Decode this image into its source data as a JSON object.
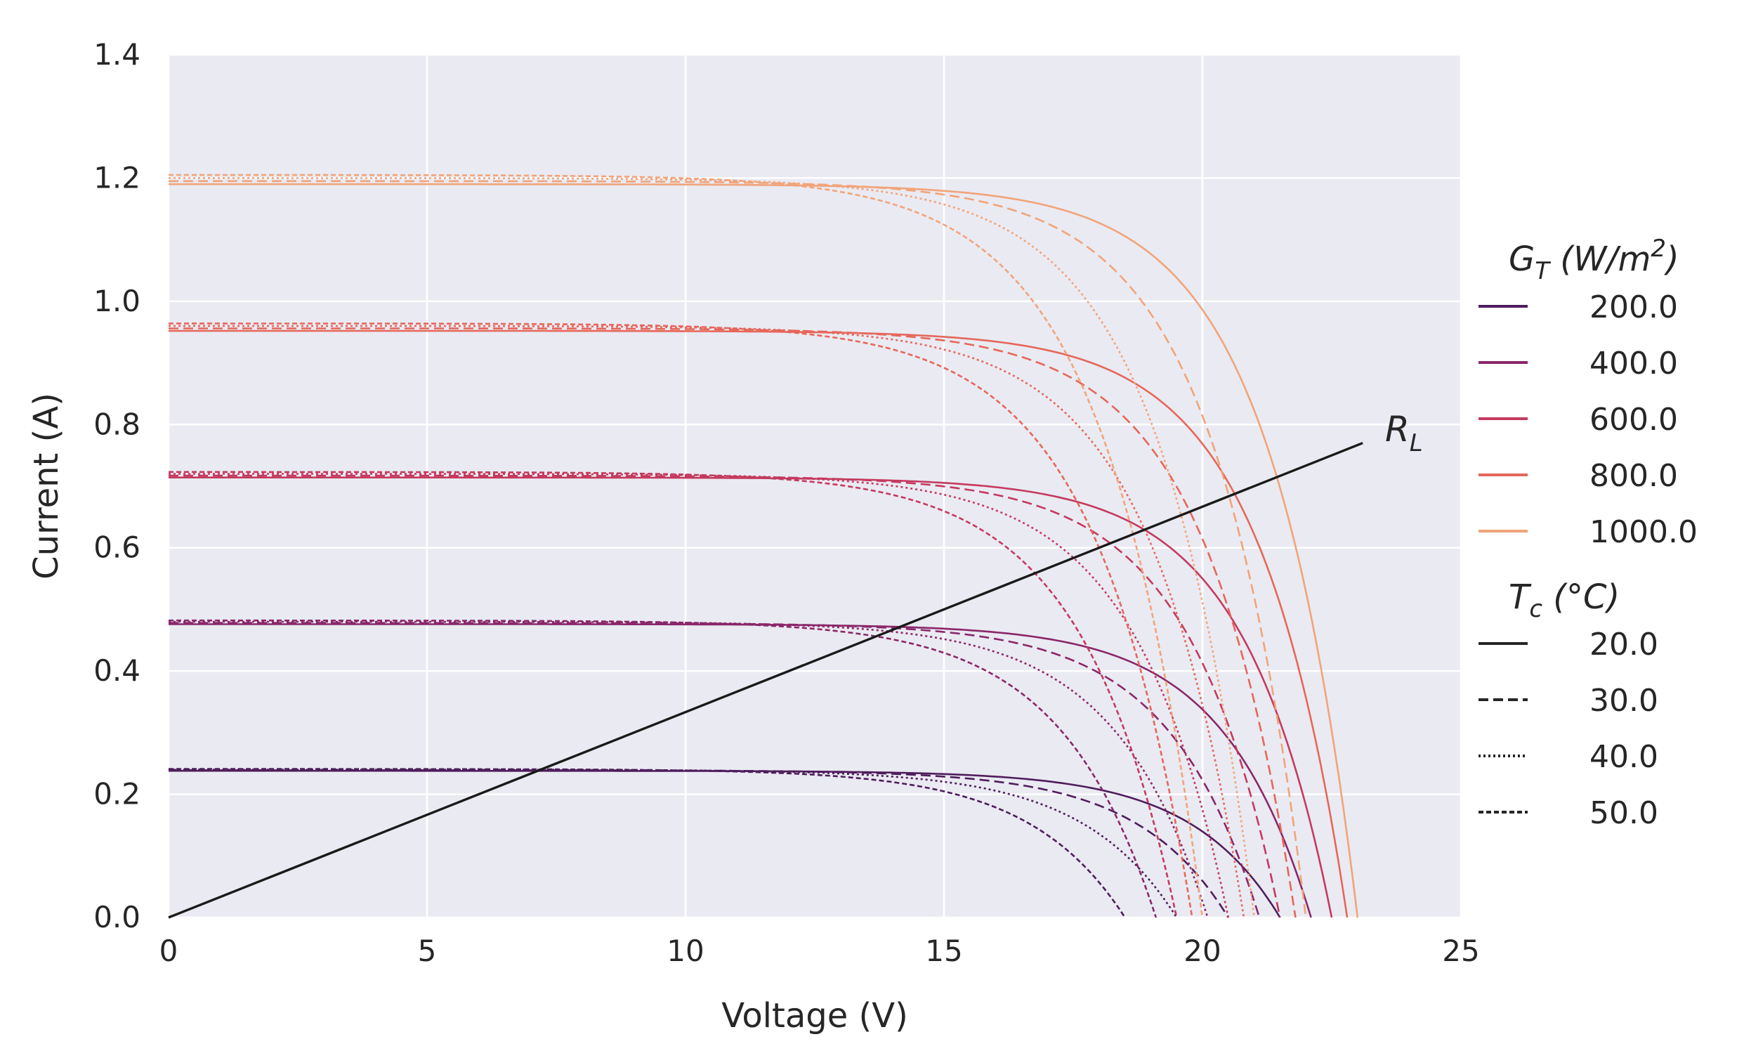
{
  "chart_data": {
    "type": "line",
    "title": "",
    "xlabel": "Voltage (V)",
    "ylabel": "Current (A)",
    "xlim": [
      0,
      25
    ],
    "ylim": [
      0,
      1.4
    ],
    "xticks": [
      "0",
      "5",
      "10",
      "15",
      "20",
      "25"
    ],
    "yticks": [
      "0.0",
      "0.2",
      "0.4",
      "0.6",
      "0.8",
      "1.0",
      "1.2",
      "1.4"
    ],
    "grid": true,
    "legend_position": "right",
    "legend_irradiance": {
      "title_main": "G",
      "title_sub": "T",
      "title_rest": " (W/m",
      "title_sup": "2",
      "title_end": ")",
      "entries": [
        {
          "label": "200.0",
          "color": "#4e1d5c"
        },
        {
          "label": "400.0",
          "color": "#8a2769"
        },
        {
          "label": "600.0",
          "color": "#c43a5e"
        },
        {
          "label": "800.0",
          "color": "#e5675a"
        },
        {
          "label": "1000.0",
          "color": "#f1a479"
        }
      ]
    },
    "legend_temperature": {
      "title_main": "T",
      "title_sub": "c",
      "title_rest": " (°C)",
      "entries": [
        {
          "label": "20.0",
          "dash": "solid"
        },
        {
          "label": "30.0",
          "dash": "dashed"
        },
        {
          "label": "40.0",
          "dash": "dotted"
        },
        {
          "label": "50.0",
          "dash": "densely-dashed"
        }
      ]
    },
    "load_line": {
      "label_main": "R",
      "label_sub": "L",
      "color": "#1a1a1a",
      "x": [
        0,
        23.1
      ],
      "y": [
        0,
        0.77
      ]
    },
    "series": [
      {
        "name": "G=200, Tc=20",
        "g_index": 0,
        "dash": "solid",
        "isc": 0.238,
        "voc": 21.5,
        "knee": 1.7
      },
      {
        "name": "G=200, Tc=30",
        "g_index": 0,
        "dash": "dashed",
        "isc": 0.239,
        "voc": 20.5,
        "knee": 1.75
      },
      {
        "name": "G=200, Tc=40",
        "g_index": 0,
        "dash": "dotted",
        "isc": 0.24,
        "voc": 19.5,
        "knee": 1.8
      },
      {
        "name": "G=200, Tc=50",
        "g_index": 0,
        "dash": "densely-dashed",
        "isc": 0.241,
        "voc": 18.5,
        "knee": 1.85
      },
      {
        "name": "G=400, Tc=20",
        "g_index": 1,
        "dash": "solid",
        "isc": 0.476,
        "voc": 22.1,
        "knee": 1.7
      },
      {
        "name": "G=400, Tc=30",
        "g_index": 1,
        "dash": "dashed",
        "isc": 0.478,
        "voc": 21.1,
        "knee": 1.75
      },
      {
        "name": "G=400, Tc=40",
        "g_index": 1,
        "dash": "dotted",
        "isc": 0.48,
        "voc": 20.1,
        "knee": 1.8
      },
      {
        "name": "G=400, Tc=50",
        "g_index": 1,
        "dash": "densely-dashed",
        "isc": 0.482,
        "voc": 19.1,
        "knee": 1.85
      },
      {
        "name": "G=600, Tc=20",
        "g_index": 2,
        "dash": "solid",
        "isc": 0.714,
        "voc": 22.5,
        "knee": 1.7
      },
      {
        "name": "G=600, Tc=30",
        "g_index": 2,
        "dash": "dashed",
        "isc": 0.717,
        "voc": 21.5,
        "knee": 1.75
      },
      {
        "name": "G=600, Tc=40",
        "g_index": 2,
        "dash": "dotted",
        "isc": 0.72,
        "voc": 20.5,
        "knee": 1.8
      },
      {
        "name": "G=600, Tc=50",
        "g_index": 2,
        "dash": "densely-dashed",
        "isc": 0.723,
        "voc": 19.5,
        "knee": 1.85
      },
      {
        "name": "G=800, Tc=20",
        "g_index": 3,
        "dash": "solid",
        "isc": 0.952,
        "voc": 22.8,
        "knee": 1.7
      },
      {
        "name": "G=800, Tc=30",
        "g_index": 3,
        "dash": "dashed",
        "isc": 0.956,
        "voc": 21.8,
        "knee": 1.75
      },
      {
        "name": "G=800, Tc=40",
        "g_index": 3,
        "dash": "dotted",
        "isc": 0.96,
        "voc": 20.8,
        "knee": 1.8
      },
      {
        "name": "G=800, Tc=50",
        "g_index": 3,
        "dash": "densely-dashed",
        "isc": 0.964,
        "voc": 19.8,
        "knee": 1.85
      },
      {
        "name": "G=1000, Tc=20",
        "g_index": 4,
        "dash": "solid",
        "isc": 1.19,
        "voc": 23.0,
        "knee": 1.7
      },
      {
        "name": "G=1000, Tc=30",
        "g_index": 4,
        "dash": "dashed",
        "isc": 1.195,
        "voc": 22.0,
        "knee": 1.75
      },
      {
        "name": "G=1000, Tc=40",
        "g_index": 4,
        "dash": "dotted",
        "isc": 1.2,
        "voc": 21.0,
        "knee": 1.8
      },
      {
        "name": "G=1000, Tc=50",
        "g_index": 4,
        "dash": "densely-dashed",
        "isc": 1.205,
        "voc": 20.0,
        "knee": 1.85
      }
    ]
  }
}
